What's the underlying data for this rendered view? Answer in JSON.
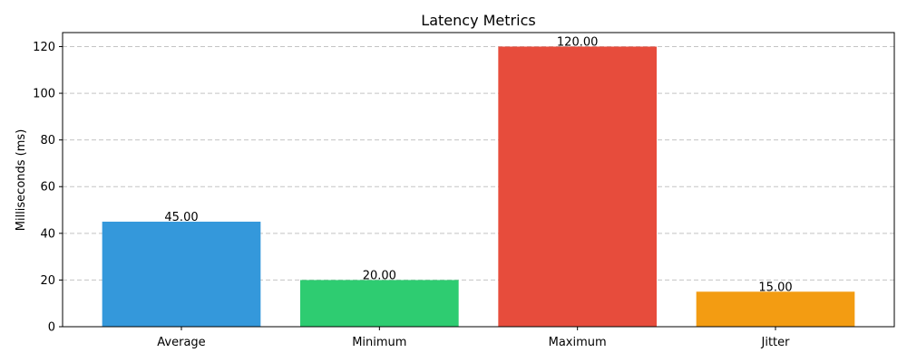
{
  "chart_data": {
    "type": "bar",
    "title": "Latency Metrics",
    "xlabel": "",
    "ylabel": "Milliseconds (ms)",
    "categories": [
      "Average",
      "Minimum",
      "Maximum",
      "Jitter"
    ],
    "values": [
      45,
      20,
      120,
      15
    ],
    "data_labels": [
      "45.00",
      "20.00",
      "120.00",
      "15.00"
    ],
    "colors": [
      "#3498db",
      "#2ecc71",
      "#e74c3c",
      "#f39c12"
    ],
    "ylim": [
      0,
      126
    ],
    "yticks": [
      0,
      20,
      40,
      60,
      80,
      100,
      120
    ],
    "grid": "y-dashed",
    "legend": "none"
  }
}
